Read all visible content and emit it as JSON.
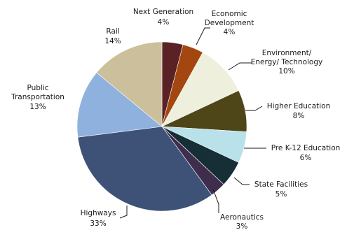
{
  "chart_data": {
    "type": "pie",
    "start_angle_deg": 0,
    "direction": "clockwise",
    "slices": [
      {
        "name": "Next Generation",
        "value": 4,
        "label": "4%",
        "color": "#5a2225"
      },
      {
        "name": "Economic Development",
        "value": 4,
        "label": "4%",
        "color": "#a3460f"
      },
      {
        "name": "Environment/ Energy/ Technology",
        "value": 10,
        "label": "10%",
        "color": "#eeefdc"
      },
      {
        "name": "Higher Education",
        "value": 8,
        "label": "8%",
        "color": "#4e4519"
      },
      {
        "name": "Pre K-12 Education",
        "value": 6,
        "label": "6%",
        "color": "#b9e1e9"
      },
      {
        "name": "State Facilities",
        "value": 5,
        "label": "5%",
        "color": "#162e36"
      },
      {
        "name": "Aeronautics",
        "value": 3,
        "label": "3%",
        "color": "#3f2d4e"
      },
      {
        "name": "Highways",
        "value": 33,
        "label": "33%",
        "color": "#3d5276"
      },
      {
        "name": "Public Transportation",
        "value": 13,
        "label": "13%",
        "color": "#8fb1de"
      },
      {
        "name": "Rail",
        "value": 14,
        "label": "14%",
        "color": "#cbbf9c"
      }
    ]
  }
}
